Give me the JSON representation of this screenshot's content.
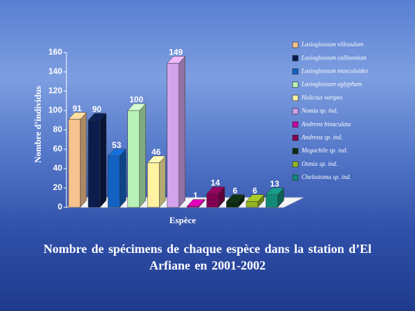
{
  "chart_data": {
    "type": "bar3d",
    "title": "Nombre de spécimens de chaque espèce dans la station d’El Arfiane en 2001-2002",
    "xlabel": "Espèce",
    "ylabel": "Nombre d’individus",
    "ylim": [
      0,
      160
    ],
    "yticks": [
      0,
      20,
      40,
      60,
      80,
      100,
      120,
      140,
      160
    ],
    "legend_position": "right",
    "series": [
      {
        "name": "Lasioglossum villosulum",
        "color": "#f6c28e",
        "values": [
          91
        ]
      },
      {
        "name": "Lasioglossum callizonium",
        "color": "#0c1c4c",
        "values": [
          90
        ]
      },
      {
        "name": "Lasioglossum musculoides",
        "color": "#1262c4",
        "values": [
          53
        ]
      },
      {
        "name": "Lasioglossum aglyphum",
        "color": "#b8f2b8",
        "values": [
          100
        ]
      },
      {
        "name": "Halictus varipes",
        "color": "#fff2a2",
        "values": [
          46
        ]
      },
      {
        "name": "Nomia sp. ind.",
        "color": "#d2a2ea",
        "values": [
          149
        ]
      },
      {
        "name": "Andrena binaculata",
        "color": "#c400a2",
        "values": [
          1
        ]
      },
      {
        "name": "Andrena sp. ind.",
        "color": "#820052",
        "values": [
          14
        ]
      },
      {
        "name": "Megachile sp. ind.",
        "color": "#0c2c12",
        "values": [
          6
        ]
      },
      {
        "name": "Osmia sp. ind.",
        "color": "#92b222",
        "values": [
          6
        ]
      },
      {
        "name": "Chelostoma sp. ind.",
        "color": "#128a7a",
        "values": [
          13
        ]
      }
    ]
  }
}
